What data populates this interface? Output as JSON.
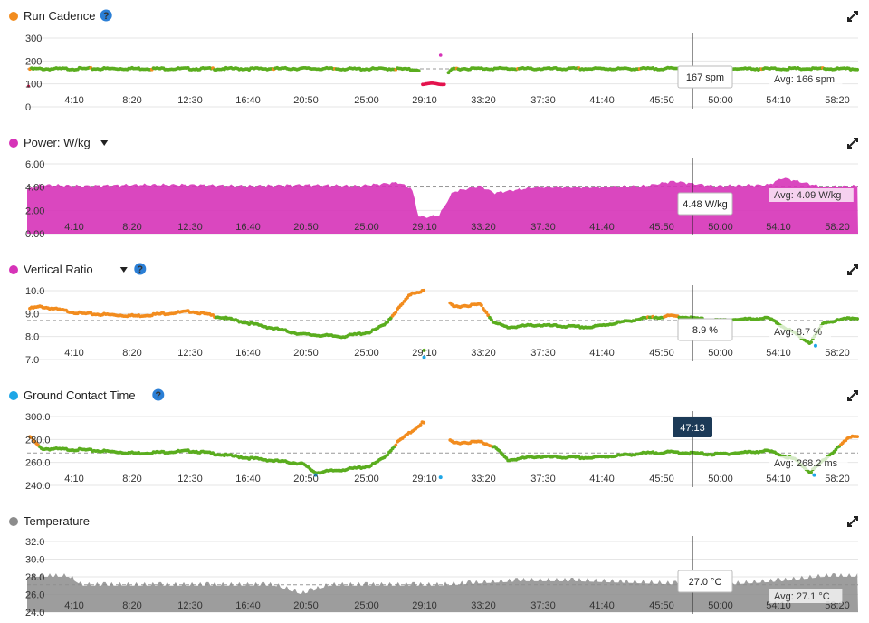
{
  "colors": {
    "orange": "#f28c1e",
    "green": "#5aad1f",
    "magenta": "#d633b8",
    "blue": "#1ea6e6",
    "gray": "#8c8c8c",
    "help": "#2b7fd6",
    "cursor_label_bg": "#1c3a57"
  },
  "x_ticks": [
    "4:10",
    "8:20",
    "12:30",
    "16:40",
    "20:50",
    "25:00",
    "29:10",
    "33:20",
    "37:30",
    "41:40",
    "45:50",
    "50:00",
    "54:10",
    "58:20"
  ],
  "cursor_time": "47:13",
  "charts": [
    {
      "id": "cadence",
      "title": "Run Cadence",
      "dot_color": "#f28c1e",
      "help_icon": true,
      "dropdown": false,
      "y_ticks": [
        "300",
        "200",
        "100",
        "0"
      ],
      "tooltip": "167 spm",
      "avg_label": "Avg: 166 spm"
    },
    {
      "id": "power",
      "title": "Power: W/kg",
      "dot_color": "#d633b8",
      "help_icon": false,
      "dropdown": true,
      "y_ticks": [
        "6.00",
        "4.00",
        "2.00",
        "0.00"
      ],
      "tooltip": "4.48 W/kg",
      "avg_label": "Avg: 4.09 W/kg"
    },
    {
      "id": "vratio",
      "title": "Vertical Ratio",
      "dot_color": "#d633b8",
      "help_icon": true,
      "dropdown": true,
      "y_ticks": [
        "10.0",
        "9.0",
        "8.0",
        "7.0"
      ],
      "tooltip": "8.9 %",
      "avg_label": "Avg: 8.7 %"
    },
    {
      "id": "gct",
      "title": "Ground Contact Time",
      "dot_color": "#1ea6e6",
      "help_icon": true,
      "dropdown": false,
      "y_ticks": [
        "300.0",
        "280.0",
        "260.0",
        "240.0"
      ],
      "tooltip": "",
      "avg_label": "Avg: 268.2 ms"
    },
    {
      "id": "temp",
      "title": "Temperature",
      "dot_color": "#8c8c8c",
      "help_icon": false,
      "dropdown": false,
      "y_ticks": [
        "32.0",
        "30.0",
        "28.0",
        "26.0",
        "24.0"
      ],
      "tooltip": "27.0 °C",
      "avg_label": "Avg: 27.1 °C"
    }
  ],
  "chart_data": [
    {
      "type": "scatter",
      "title": "Run Cadence",
      "ylim": [
        0,
        300
      ],
      "y_ticks": [
        0,
        100,
        200,
        300
      ],
      "x_unit": "elapsed time (min)",
      "average": 166,
      "cursor": {
        "time": "47:13",
        "value": 167,
        "unit": "spm"
      },
      "series": [
        {
          "name": "Run Cadence",
          "x": [
            0,
            4,
            8,
            12,
            16,
            20,
            24,
            27,
            28,
            29,
            30,
            31,
            33,
            37,
            41,
            45,
            47,
            50,
            54,
            58,
            60
          ],
          "values": [
            165,
            166,
            167,
            166,
            166,
            167,
            165,
            166,
            162,
            160,
            100,
            166,
            167,
            166,
            166,
            166,
            167,
            166,
            166,
            166,
            165
          ]
        }
      ]
    },
    {
      "type": "area",
      "title": "Power: W/kg",
      "ylim": [
        0,
        6
      ],
      "y_ticks": [
        0,
        2,
        4,
        6
      ],
      "x_unit": "elapsed time (min)",
      "average": 4.09,
      "cursor": {
        "time": "47:13",
        "value": 4.48,
        "unit": "W/kg"
      },
      "series": [
        {
          "name": "Power: W/kg",
          "x": [
            0,
            1,
            4,
            8,
            12,
            16,
            20,
            24,
            26,
            27,
            28,
            28.5,
            29,
            30,
            31,
            33,
            34,
            37,
            41,
            45,
            47,
            50,
            54,
            55,
            58,
            60
          ],
          "values": [
            3.8,
            4.2,
            4.1,
            4.2,
            4.2,
            4.1,
            4.2,
            4.1,
            4.3,
            4.4,
            3.9,
            1.5,
            1.4,
            1.6,
            3.6,
            4.1,
            3.5,
            4.0,
            4.0,
            4.1,
            4.5,
            4.1,
            4.2,
            4.8,
            4.0,
            4.1
          ]
        }
      ]
    },
    {
      "type": "scatter",
      "title": "Vertical Ratio",
      "ylim": [
        7.0,
        10.0
      ],
      "y_ticks": [
        7,
        8,
        9,
        10
      ],
      "x_unit": "elapsed time (min)",
      "average": 8.7,
      "cursor": {
        "time": "47:13",
        "value": 8.9,
        "unit": "%"
      },
      "series": [
        {
          "name": "Vertical Ratio",
          "x": [
            0,
            1,
            4,
            8,
            12,
            16,
            20,
            23,
            25,
            26,
            27,
            28,
            29,
            30,
            31,
            33,
            34,
            35,
            37,
            41,
            45,
            47,
            50,
            54,
            56,
            57,
            58,
            60
          ],
          "values": [
            9.2,
            9.3,
            9.0,
            8.9,
            9.1,
            8.6,
            8.1,
            8.0,
            8.2,
            8.5,
            9.2,
            9.9,
            10.0,
            9.9,
            9.3,
            9.4,
            8.6,
            8.4,
            8.5,
            8.4,
            8.8,
            8.9,
            8.7,
            8.8,
            8.1,
            7.7,
            8.6,
            8.8
          ]
        }
      ]
    },
    {
      "type": "scatter",
      "title": "Ground Contact Time",
      "ylim": [
        240,
        300
      ],
      "y_ticks": [
        240,
        260,
        280,
        300
      ],
      "x_unit": "elapsed time (min)",
      "average": 268.2,
      "cursor": {
        "time": "47:13"
      },
      "series": [
        {
          "name": "Ground Contact Time",
          "x": [
            0,
            1,
            4,
            8,
            12,
            16,
            20,
            21,
            24,
            25,
            26,
            27,
            28,
            28.8,
            30,
            31,
            33,
            34,
            35,
            37,
            41,
            45,
            47,
            50,
            54,
            56,
            57,
            58,
            60
          ],
          "values": [
            285,
            272,
            271,
            268,
            270,
            264,
            259,
            251,
            255,
            257,
            264,
            278,
            287,
            295,
            285,
            277,
            278,
            274,
            262,
            265,
            264,
            268,
            269,
            267,
            270,
            262,
            251,
            262,
            283
          ]
        }
      ]
    },
    {
      "type": "area",
      "title": "Temperature",
      "ylim": [
        24,
        32
      ],
      "y_ticks": [
        24,
        26,
        28,
        30,
        32
      ],
      "x_unit": "elapsed time (min)",
      "average": 27.1,
      "cursor": {
        "time": "47:13",
        "value": 27.0,
        "unit": "°C"
      },
      "series": [
        {
          "name": "Temperature",
          "x": [
            0,
            3,
            4,
            18,
            20,
            22,
            30,
            36,
            40,
            50,
            55,
            58,
            60
          ],
          "values": [
            28,
            28,
            27,
            27,
            26,
            27,
            27,
            27.5,
            27.5,
            27,
            27.5,
            28,
            28
          ]
        }
      ]
    }
  ]
}
